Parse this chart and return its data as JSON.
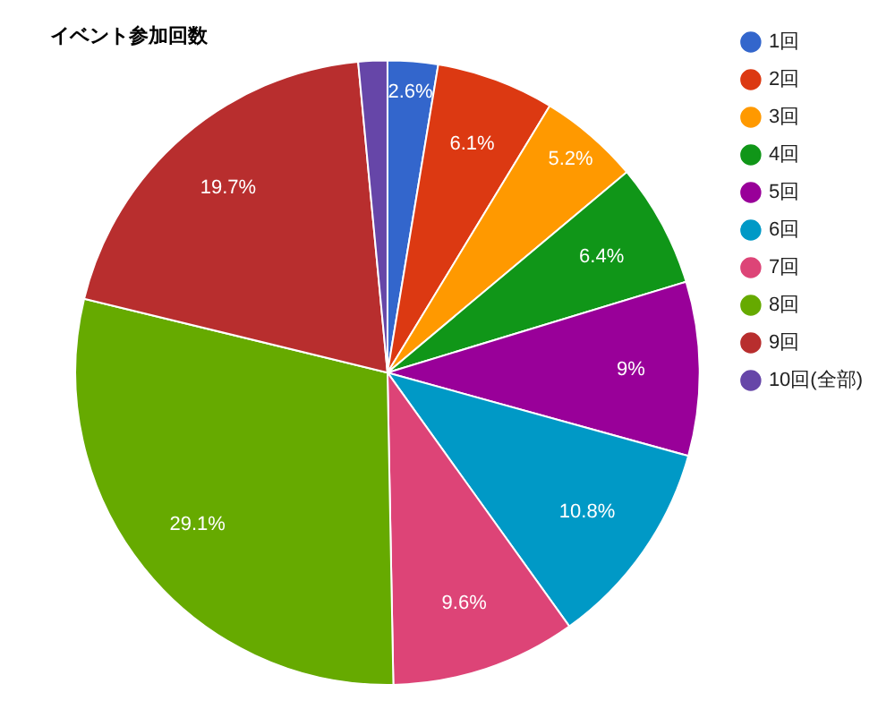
{
  "chart_data": {
    "type": "pie",
    "title": "イベント参加回数",
    "categories": [
      "1回",
      "2回",
      "3回",
      "4回",
      "5回",
      "6回",
      "7回",
      "8回",
      "9回",
      "10回(全部)"
    ],
    "values": [
      2.6,
      6.1,
      5.2,
      6.4,
      9,
      10.8,
      9.6,
      29.1,
      19.7,
      1.5
    ],
    "value_labels": [
      "2.6%",
      "6.1%",
      "5.2%",
      "6.4%",
      "9%",
      "10.8%",
      "9.6%",
      "29.1%",
      "19.7%",
      null
    ],
    "colors": [
      "#3366cc",
      "#dc3912",
      "#ff9900",
      "#109618",
      "#990099",
      "#0099c6",
      "#dd4477",
      "#66aa00",
      "#b82e2e",
      "#6646a8"
    ],
    "legend": "top right"
  }
}
